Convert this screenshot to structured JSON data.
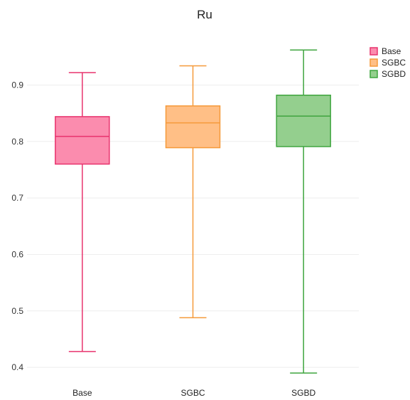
{
  "chart_data": {
    "type": "box",
    "title": "Ru",
    "xlabel": "",
    "ylabel": "",
    "ylim": [
      0.38,
      0.98
    ],
    "yticks": [
      0.4,
      0.5,
      0.6,
      0.7,
      0.8,
      0.9
    ],
    "categories": [
      "Base",
      "SGBC",
      "SGBD"
    ],
    "series": [
      {
        "name": "Base",
        "min": 0.428,
        "q1": 0.76,
        "median": 0.809,
        "q3": 0.844,
        "max": 0.922,
        "color": "#e8336d",
        "fill": "#fb8cae"
      },
      {
        "name": "SGBC",
        "min": 0.488,
        "q1": 0.789,
        "median": 0.833,
        "q3": 0.863,
        "max": 0.934,
        "color": "#f59a3a",
        "fill": "#ffbf86"
      },
      {
        "name": "SGBD",
        "min": 0.39,
        "q1": 0.791,
        "median": 0.845,
        "q3": 0.882,
        "max": 0.962,
        "color": "#3fa53f",
        "fill": "#94cf8e"
      }
    ],
    "grid": true,
    "legend": "top-right"
  }
}
